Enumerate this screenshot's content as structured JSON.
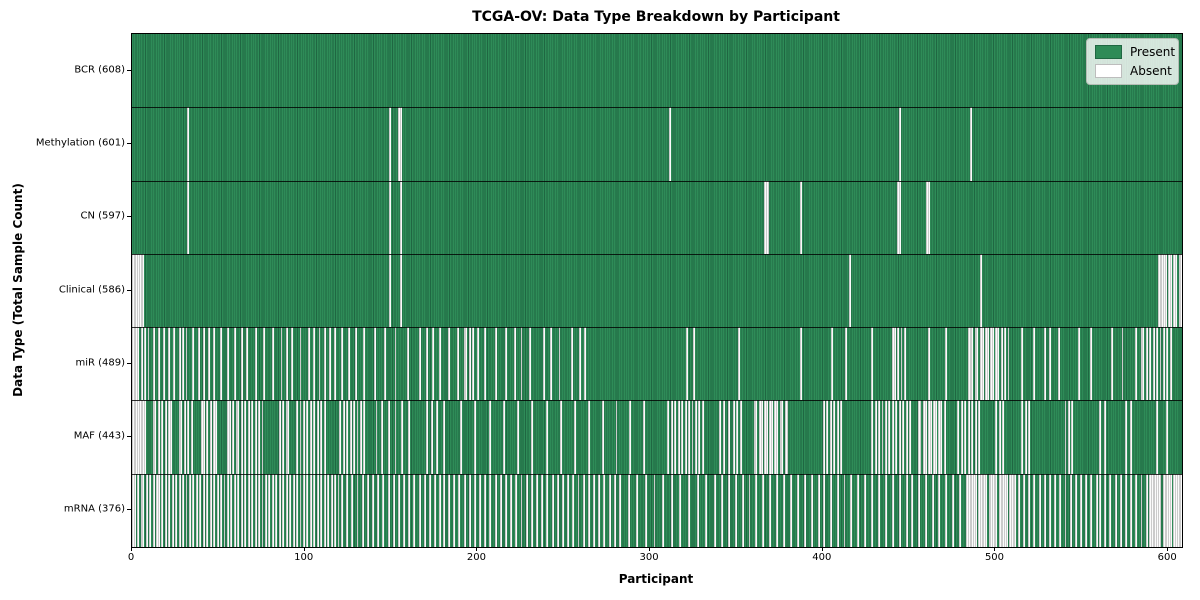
{
  "chart_data": {
    "type": "heatmap",
    "title": "TCGA-OV: Data Type Breakdown by Participant",
    "xlabel": "Participant",
    "ylabel": "Data Type (Total Sample Count)",
    "x_range": [
      0,
      608
    ],
    "x_ticks": [
      "0",
      "100",
      "200",
      "300",
      "400",
      "500",
      "600"
    ],
    "x_tick_values": [
      0,
      100,
      200,
      300,
      400,
      500,
      600
    ],
    "legend_position": "upper right",
    "legend": [
      {
        "label": "Present",
        "color": "#2e8b57"
      },
      {
        "label": "Absent",
        "color": "#ffffff"
      }
    ],
    "colors": {
      "present": "#2e8b57",
      "present_edge": "#1f6742",
      "absent": "#ffffff",
      "absent_edge": "#9b9b9b",
      "row_separator": "#000000"
    },
    "rows": [
      {
        "label": "BCR (608)",
        "name": "bcr",
        "total": 608,
        "absent": []
      },
      {
        "label": "Methylation (601)",
        "name": "methylation",
        "total": 601,
        "absent": [
          32,
          149,
          154,
          155,
          311,
          444,
          485
        ]
      },
      {
        "label": "CN (597)",
        "name": "cn",
        "total": 597,
        "absent": [
          32,
          149,
          155,
          366,
          367,
          368,
          387,
          443,
          444,
          460,
          461
        ]
      },
      {
        "label": "Clinical (586)",
        "name": "clinical",
        "total": 586,
        "absent": [
          0,
          1,
          2,
          3,
          4,
          5,
          6,
          149,
          155,
          415,
          491,
          594,
          595,
          596,
          597,
          598,
          600,
          601,
          603,
          604,
          606,
          607
        ]
      },
      {
        "label": "miR (489)",
        "name": "mir",
        "total": 489,
        "absent": [
          0,
          1,
          2,
          3,
          5,
          7,
          9,
          12,
          15,
          18,
          21,
          24,
          27,
          29,
          31,
          35,
          38,
          41,
          44,
          47,
          51,
          55,
          59,
          63,
          66,
          71,
          76,
          81,
          86,
          89,
          92,
          97,
          102,
          105,
          108,
          111,
          114,
          117,
          121,
          125,
          129,
          134,
          140,
          146,
          152,
          159,
          166,
          170,
          174,
          178,
          183,
          188,
          192,
          193,
          195,
          197,
          200,
          204,
          210,
          216,
          221,
          225,
          230,
          238,
          242,
          247,
          254,
          259,
          262,
          321,
          325,
          351,
          387,
          405,
          413,
          428,
          440,
          441,
          443,
          445,
          447,
          461,
          471,
          484,
          485,
          486,
          488,
          489,
          491,
          492,
          494,
          495,
          497,
          498,
          500,
          501,
          503,
          505,
          507,
          515,
          522,
          528,
          531,
          536,
          548,
          555,
          567,
          573,
          581,
          584,
          585,
          587,
          589,
          591,
          593,
          595,
          597,
          599,
          601
        ]
      },
      {
        "label": "MAF (443)",
        "name": "maf",
        "total": 443,
        "absent": [
          0,
          1,
          2,
          3,
          4,
          5,
          6,
          7,
          12,
          13,
          15,
          17,
          19,
          21,
          22,
          27,
          28,
          30,
          32,
          34,
          40,
          41,
          43,
          45,
          47,
          48,
          55,
          56,
          58,
          60,
          61,
          63,
          65,
          67,
          69,
          71,
          73,
          75,
          85,
          87,
          89,
          90,
          95,
          97,
          99,
          101,
          103,
          105,
          107,
          109,
          111,
          120,
          122,
          124,
          126,
          128,
          130,
          132,
          134,
          141,
          144,
          148,
          152,
          156,
          160,
          170,
          173,
          176,
          180,
          190,
          198,
          207,
          215,
          223,
          231,
          240,
          248,
          256,
          264,
          272,
          280,
          288,
          296,
          310,
          312,
          314,
          316,
          318,
          320,
          322,
          324,
          326,
          328,
          330,
          340,
          342,
          345,
          348,
          350,
          352,
          360,
          361,
          363,
          364,
          366,
          367,
          369,
          370,
          372,
          373,
          375,
          376,
          378,
          379,
          400,
          402,
          404,
          406,
          408,
          410,
          428,
          430,
          432,
          434,
          436,
          438,
          440,
          442,
          444,
          446,
          448,
          450,
          455,
          456,
          458,
          459,
          461,
          462,
          464,
          465,
          467,
          468,
          470,
          478,
          480,
          482,
          484,
          486,
          488,
          490,
          500,
          502,
          504,
          515,
          517,
          519,
          540,
          542,
          544,
          560,
          563,
          575,
          578,
          593,
          599
        ]
      },
      {
        "label": "mRNA (376)",
        "name": "mrna",
        "total": 376,
        "absent": [
          0,
          1,
          3,
          5,
          6,
          8,
          10,
          12,
          14,
          15,
          17,
          19,
          21,
          23,
          25,
          27,
          29,
          31,
          33,
          35,
          37,
          39,
          41,
          43,
          45,
          47,
          49,
          51,
          53,
          55,
          57,
          59,
          61,
          63,
          65,
          67,
          69,
          71,
          73,
          75,
          77,
          79,
          81,
          83,
          85,
          87,
          89,
          91,
          93,
          95,
          97,
          99,
          101,
          103,
          105,
          107,
          109,
          111,
          113,
          115,
          117,
          119,
          121,
          124,
          127,
          130,
          133,
          136,
          139,
          142,
          145,
          148,
          151,
          154,
          157,
          160,
          163,
          166,
          169,
          172,
          175,
          178,
          180,
          183,
          186,
          189,
          192,
          195,
          198,
          201,
          204,
          207,
          210,
          213,
          216,
          219,
          222,
          225,
          228,
          231,
          234,
          237,
          240,
          243,
          246,
          249,
          252,
          255,
          258,
          261,
          264,
          267,
          270,
          273,
          276,
          279,
          282,
          287,
          292,
          297,
          302,
          307,
          312,
          317,
          322,
          327,
          332,
          337,
          341,
          345,
          349,
          353,
          357,
          361,
          365,
          369,
          373,
          377,
          381,
          385,
          389,
          393,
          397,
          400,
          404,
          408,
          412,
          416,
          420,
          424,
          428,
          432,
          436,
          440,
          444,
          448,
          451,
          455,
          459,
          463,
          467,
          471,
          475,
          479,
          483,
          484,
          485,
          486,
          487,
          488,
          490,
          491,
          492,
          493,
          494,
          496,
          497,
          498,
          499,
          500,
          502,
          503,
          504,
          505,
          506,
          508,
          509,
          510,
          511,
          513,
          516,
          519,
          522,
          525,
          528,
          531,
          534,
          537,
          540,
          543,
          546,
          549,
          552,
          555,
          558,
          560,
          563,
          566,
          569,
          572,
          575,
          578,
          581,
          584,
          587,
          589,
          590,
          591,
          592,
          593,
          594,
          595,
          597,
          598,
          599,
          600,
          601,
          603,
          604,
          605,
          606,
          607
        ]
      }
    ]
  }
}
